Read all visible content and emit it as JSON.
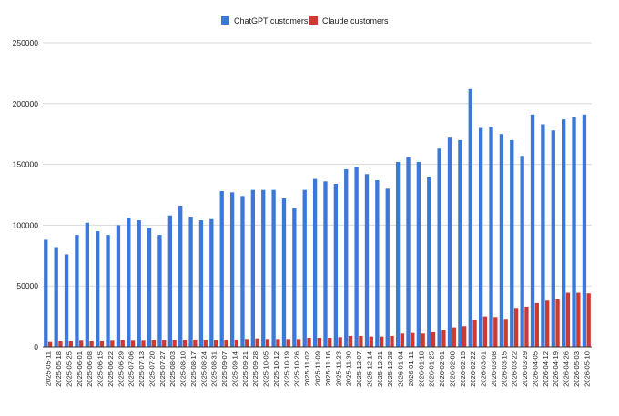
{
  "chart_data": {
    "type": "bar",
    "title": "",
    "xlabel": "",
    "ylabel": "",
    "ylim": [
      0,
      250000
    ],
    "yticks": [
      0,
      50000,
      100000,
      150000,
      200000,
      250000
    ],
    "ytick_labels": [
      "0",
      "50000",
      "100000",
      "150000",
      "200000",
      "250000"
    ],
    "grid": true,
    "legend_position": "top-center",
    "categories": [
      "2025-05-11",
      "2025-05-18",
      "2025-05-25",
      "2025-06-01",
      "2025-06-08",
      "2025-06-15",
      "2025-06-22",
      "2025-06-29",
      "2025-07-06",
      "2025-07-13",
      "2025-07-20",
      "2025-07-27",
      "2025-08-03",
      "2025-08-10",
      "2025-08-17",
      "2025-08-24",
      "2025-08-31",
      "2025-09-07",
      "2025-09-14",
      "2025-09-21",
      "2025-09-28",
      "2025-10-05",
      "2025-10-12",
      "2025-10-19",
      "2025-10-26",
      "2025-11-02",
      "2025-11-09",
      "2025-11-16",
      "2025-11-23",
      "2025-11-30",
      "2025-12-07",
      "2025-12-14",
      "2025-12-21",
      "2025-12-28",
      "2026-01-04",
      "2026-01-11",
      "2026-01-18",
      "2026-01-25",
      "2026-02-01",
      "2026-02-08",
      "2026-02-15",
      "2026-02-22",
      "2026-03-01",
      "2026-03-08",
      "2026-03-15",
      "2026-03-22",
      "2026-03-29",
      "2026-04-05",
      "2026-04-12",
      "2026-04-19",
      "2026-04-26",
      "2026-05-03",
      "2026-05-10"
    ],
    "series": [
      {
        "name": "ChatGPT customers",
        "color": "#3c78d8",
        "values": [
          88000,
          82000,
          76000,
          92000,
          102000,
          95000,
          92000,
          100000,
          106000,
          104000,
          98000,
          92000,
          108000,
          116000,
          107000,
          104000,
          105000,
          128000,
          127000,
          124000,
          129000,
          129000,
          129000,
          122000,
          114000,
          129000,
          138000,
          136000,
          134000,
          146000,
          148000,
          142000,
          137000,
          130000,
          152000,
          156000,
          152000,
          140000,
          163000,
          172000,
          170000,
          212000,
          180000,
          181000,
          175000,
          170000,
          157000,
          191000,
          183000,
          178000,
          187000,
          189000,
          191000
        ]
      },
      {
        "name": "Claude customers",
        "color": "#cc3b33",
        "values": [
          4000,
          4500,
          4500,
          5000,
          4500,
          4500,
          5000,
          5500,
          5000,
          5000,
          5500,
          5500,
          5500,
          6000,
          6000,
          6000,
          6000,
          6000,
          6000,
          6500,
          7000,
          6500,
          6500,
          6500,
          6500,
          7500,
          7500,
          7500,
          8000,
          9000,
          9000,
          8500,
          8500,
          9000,
          11000,
          11500,
          11000,
          12000,
          14000,
          16000,
          17000,
          22000,
          25000,
          24500,
          23000,
          32000,
          33000,
          36000,
          38000,
          39000,
          44500,
          44500,
          44000
        ]
      }
    ]
  }
}
